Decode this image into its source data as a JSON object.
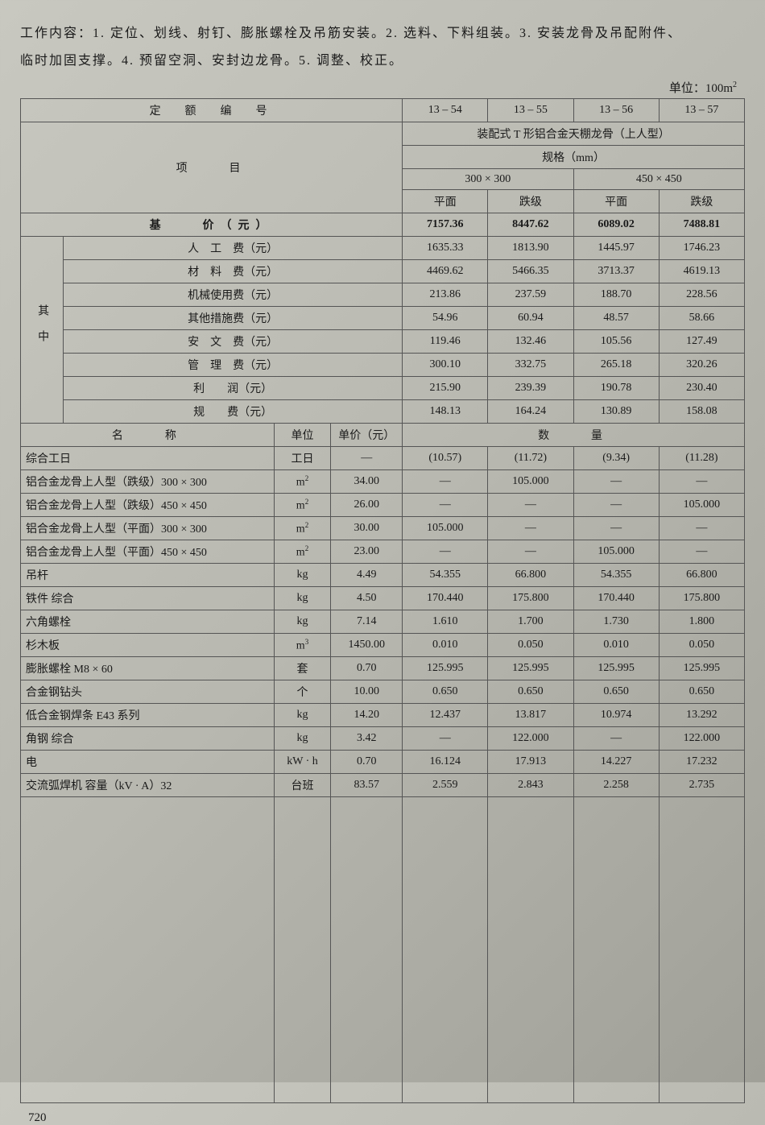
{
  "intro_line1": "工作内容：1. 定位、划线、射钉、膨胀螺栓及吊筋安装。2. 选料、下料组装。3. 安装龙骨及吊配附件、",
  "intro_line2": "临时加固支撑。4. 预留空洞、安封边龙骨。5. 调整、校正。",
  "unit_label": "单位：100m",
  "unit_exp": "2",
  "headers": {
    "code_label": "定　额　编　号",
    "item_label": "项　　目",
    "base_label": "基　　价（元）",
    "sub_vertical": "其中",
    "name_label": "名　　称",
    "unit_label": "单位",
    "price_label": "单价（元）",
    "qty_label": "数　　量",
    "group_title": "装配式 T 形铝合金天棚龙骨（上人型）",
    "spec_label": "规格（mm）",
    "spec1": "300 × 300",
    "spec2": "450 × 450",
    "sub_flat": "平面",
    "sub_step": "跌级"
  },
  "codes": [
    "13 – 54",
    "13 – 55",
    "13 – 56",
    "13 – 57"
  ],
  "base": [
    "7157.36",
    "8447.62",
    "6089.02",
    "7488.81"
  ],
  "cost_rows": [
    {
      "label": "人　工　费（元）",
      "v": [
        "1635.33",
        "1813.90",
        "1445.97",
        "1746.23"
      ]
    },
    {
      "label": "材　料　费（元）",
      "v": [
        "4469.62",
        "5466.35",
        "3713.37",
        "4619.13"
      ]
    },
    {
      "label": "机械使用费（元）",
      "v": [
        "213.86",
        "237.59",
        "188.70",
        "228.56"
      ]
    },
    {
      "label": "其他措施费（元）",
      "v": [
        "54.96",
        "60.94",
        "48.57",
        "58.66"
      ]
    },
    {
      "label": "安　文　费（元）",
      "v": [
        "119.46",
        "132.46",
        "105.56",
        "127.49"
      ]
    },
    {
      "label": "管　理　费（元）",
      "v": [
        "300.10",
        "332.75",
        "265.18",
        "320.26"
      ]
    },
    {
      "label": "利　　润（元）",
      "v": [
        "215.90",
        "239.39",
        "190.78",
        "230.40"
      ]
    },
    {
      "label": "规　　费（元）",
      "v": [
        "148.13",
        "164.24",
        "130.89",
        "158.08"
      ]
    }
  ],
  "materials": [
    {
      "name": "综合工日",
      "unit": "工日",
      "price": "—",
      "q": [
        "(10.57)",
        "(11.72)",
        "(9.34)",
        "(11.28)"
      ]
    },
    {
      "name": "铝合金龙骨上人型（跌级）300 × 300",
      "unit": "m²",
      "price": "34.00",
      "q": [
        "—",
        "105.000",
        "—",
        "—"
      ]
    },
    {
      "name": "铝合金龙骨上人型（跌级）450 × 450",
      "unit": "m²",
      "price": "26.00",
      "q": [
        "—",
        "—",
        "—",
        "105.000"
      ]
    },
    {
      "name": "铝合金龙骨上人型（平面）300 × 300",
      "unit": "m²",
      "price": "30.00",
      "q": [
        "105.000",
        "—",
        "—",
        "—"
      ]
    },
    {
      "name": "铝合金龙骨上人型（平面）450 × 450",
      "unit": "m²",
      "price": "23.00",
      "q": [
        "—",
        "—",
        "105.000",
        "—"
      ]
    },
    {
      "name": "吊杆",
      "unit": "kg",
      "price": "4.49",
      "q": [
        "54.355",
        "66.800",
        "54.355",
        "66.800"
      ]
    },
    {
      "name": "铁件 综合",
      "unit": "kg",
      "price": "4.50",
      "q": [
        "170.440",
        "175.800",
        "170.440",
        "175.800"
      ]
    },
    {
      "name": "六角螺栓",
      "unit": "kg",
      "price": "7.14",
      "q": [
        "1.610",
        "1.700",
        "1.730",
        "1.800"
      ]
    },
    {
      "name": "杉木板",
      "unit": "m³",
      "price": "1450.00",
      "q": [
        "0.010",
        "0.050",
        "0.010",
        "0.050"
      ]
    },
    {
      "name": "膨胀螺栓 M8 × 60",
      "unit": "套",
      "price": "0.70",
      "q": [
        "125.995",
        "125.995",
        "125.995",
        "125.995"
      ]
    },
    {
      "name": "合金钢钻头",
      "unit": "个",
      "price": "10.00",
      "q": [
        "0.650",
        "0.650",
        "0.650",
        "0.650"
      ]
    },
    {
      "name": "低合金钢焊条 E43 系列",
      "unit": "kg",
      "price": "14.20",
      "q": [
        "12.437",
        "13.817",
        "10.974",
        "13.292"
      ]
    },
    {
      "name": "角钢 综合",
      "unit": "kg",
      "price": "3.42",
      "q": [
        "—",
        "122.000",
        "—",
        "122.000"
      ]
    },
    {
      "name": "电",
      "unit": "kW · h",
      "price": "0.70",
      "q": [
        "16.124",
        "17.913",
        "14.227",
        "17.232"
      ]
    },
    {
      "name": "交流弧焊机 容量（kV · A）32",
      "unit": "台班",
      "price": "83.57",
      "q": [
        "2.559",
        "2.843",
        "2.258",
        "2.735"
      ]
    }
  ],
  "page_number": "720",
  "table_style": {
    "border_color": "#555555",
    "background": "transparent",
    "font_family": "SimSun",
    "base_font_size": 14,
    "col_widths_pct": [
      3.5,
      30,
      8,
      10,
      12,
      12,
      12,
      12
    ]
  }
}
